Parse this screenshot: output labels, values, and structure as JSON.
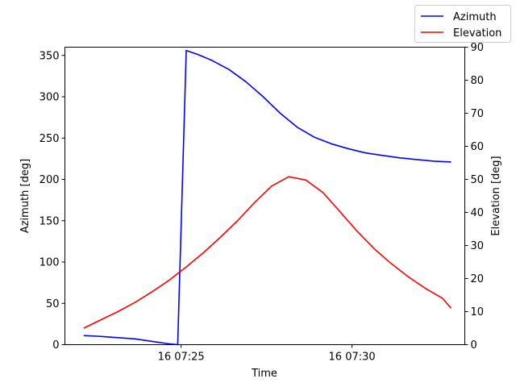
{
  "chart_data": {
    "type": "line",
    "xlabel": "Time",
    "ylabel_left": "Azimuth [deg]",
    "ylabel_right": "Elevation [deg]",
    "x_unit": "minutes past 16 07:00",
    "xlim": [
      21.6,
      33.3
    ],
    "ylim_left": [
      0,
      360
    ],
    "ylim_right": [
      0,
      90
    ],
    "x_ticks": [
      {
        "value": 25,
        "label": "16 07:25"
      },
      {
        "value": 30,
        "label": "16 07:30"
      }
    ],
    "y_ticks_left": [
      0,
      50,
      100,
      150,
      200,
      250,
      300,
      350
    ],
    "y_ticks_right": [
      0,
      10,
      20,
      30,
      40,
      50,
      60,
      70,
      80,
      90
    ],
    "grid": false,
    "legend": {
      "placement": "top-right, outside plot"
    },
    "series": [
      {
        "name": "Azimuth",
        "axis": "left",
        "color": "#0000ff",
        "x": [
          22.15,
          22.65,
          23.15,
          23.65,
          24.15,
          24.65,
          24.9,
          25.15,
          25.5,
          25.9,
          26.4,
          26.9,
          27.4,
          27.9,
          28.4,
          28.9,
          29.4,
          29.9,
          30.4,
          30.9,
          31.4,
          31.9,
          32.4,
          32.9
        ],
        "y": [
          11,
          10,
          8.5,
          7,
          4,
          1,
          0,
          356,
          351,
          344,
          333,
          318,
          300,
          280,
          263,
          251,
          243,
          237,
          232,
          229,
          226,
          224,
          222,
          221
        ]
      },
      {
        "name": "Elevation",
        "axis": "right",
        "color": "#ff0000",
        "x": [
          22.15,
          22.65,
          23.15,
          23.65,
          24.15,
          24.65,
          25.15,
          25.65,
          26.15,
          26.65,
          27.15,
          27.65,
          28.15,
          28.65,
          29.15,
          29.65,
          30.15,
          30.65,
          31.15,
          31.65,
          32.15,
          32.65,
          32.9
        ],
        "y": [
          5,
          7.5,
          10,
          12.8,
          16,
          19.5,
          23.5,
          27.8,
          32.5,
          37.5,
          43,
          48,
          50.8,
          49.8,
          46,
          40.2,
          34.3,
          29,
          24.5,
          20.5,
          17,
          14,
          11
        ]
      }
    ]
  }
}
